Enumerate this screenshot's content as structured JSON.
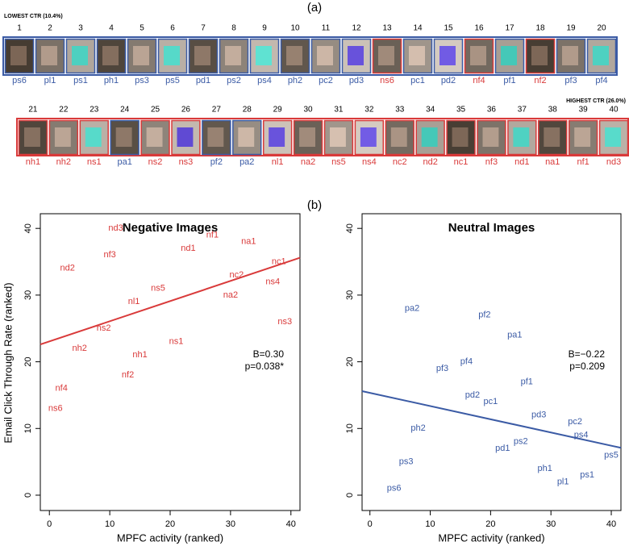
{
  "panel_a": {
    "label": "(a)",
    "lowest": "LOWEST CTR (10.4%)",
    "highest": "HIGHEST CTR (26.0%)",
    "items": [
      {
        "rank": 1,
        "code": "ps6"
      },
      {
        "rank": 2,
        "code": "pl1"
      },
      {
        "rank": 3,
        "code": "ps1"
      },
      {
        "rank": 4,
        "code": "ph1"
      },
      {
        "rank": 5,
        "code": "ps3"
      },
      {
        "rank": 6,
        "code": "ps5"
      },
      {
        "rank": 7,
        "code": "pd1"
      },
      {
        "rank": 8,
        "code": "ps2"
      },
      {
        "rank": 9,
        "code": "ps4"
      },
      {
        "rank": 10,
        "code": "ph2"
      },
      {
        "rank": 11,
        "code": "pc2"
      },
      {
        "rank": 12,
        "code": "pd3"
      },
      {
        "rank": 13,
        "code": "ns6"
      },
      {
        "rank": 14,
        "code": "pc1"
      },
      {
        "rank": 15,
        "code": "pd2"
      },
      {
        "rank": 16,
        "code": "nf4"
      },
      {
        "rank": 17,
        "code": "pf1"
      },
      {
        "rank": 18,
        "code": "nf2"
      },
      {
        "rank": 19,
        "code": "pf3"
      },
      {
        "rank": 20,
        "code": "pf4"
      },
      {
        "rank": 21,
        "code": "nh1"
      },
      {
        "rank": 22,
        "code": "nh2"
      },
      {
        "rank": 23,
        "code": "ns1"
      },
      {
        "rank": 24,
        "code": "pa1"
      },
      {
        "rank": 25,
        "code": "ns2"
      },
      {
        "rank": 26,
        "code": "ns3"
      },
      {
        "rank": 27,
        "code": "pf2"
      },
      {
        "rank": 28,
        "code": "pa2"
      },
      {
        "rank": 29,
        "code": "nl1"
      },
      {
        "rank": 30,
        "code": "na2"
      },
      {
        "rank": 31,
        "code": "ns5"
      },
      {
        "rank": 32,
        "code": "ns4"
      },
      {
        "rank": 33,
        "code": "nc2"
      },
      {
        "rank": 34,
        "code": "nd2"
      },
      {
        "rank": 35,
        "code": "nc1"
      },
      {
        "rank": 36,
        "code": "nf3"
      },
      {
        "rank": 37,
        "code": "nd1"
      },
      {
        "rank": 38,
        "code": "na1"
      },
      {
        "rank": 39,
        "code": "nf1"
      },
      {
        "rank": 40,
        "code": "nd3"
      }
    ]
  },
  "panel_b": {
    "label": "(b)",
    "y_label": "Email Click Through Rate (ranked)"
  },
  "chart_data": [
    {
      "type": "scatter",
      "title": "Negative Images",
      "x_label": "MPFC activity (ranked)",
      "color": "#d93a3a",
      "xlim": [
        -1.5,
        41.5
      ],
      "ylim": [
        -2.3,
        42.2
      ],
      "xticks": [
        0,
        10,
        20,
        30,
        40
      ],
      "yticks": [
        0,
        10,
        20,
        30,
        40
      ],
      "points": {
        "labels": [
          "ns6",
          "nf4",
          "nf2",
          "nh1",
          "nh2",
          "ns1",
          "ns2",
          "ns3",
          "nl1",
          "na2",
          "ns5",
          "ns4",
          "nc2",
          "nd2",
          "nc1",
          "nf3",
          "nd1",
          "na1",
          "nf1",
          "nd3"
        ],
        "x": [
          1,
          2,
          13,
          15,
          5,
          21,
          9,
          39,
          14,
          30,
          18,
          37,
          31,
          3,
          38,
          10,
          23,
          33,
          27,
          11
        ],
        "y": [
          13,
          16,
          18,
          21,
          22,
          23,
          25,
          26,
          29,
          30,
          31,
          32,
          33,
          34,
          35,
          36,
          37,
          38,
          39,
          40
        ]
      },
      "trend_line": {
        "x": [
          -1.5,
          41.5
        ],
        "y": [
          22.6,
          35.6
        ]
      },
      "annotations": [
        "B=0.30",
        "p=0.038*"
      ]
    },
    {
      "type": "scatter",
      "title": "Neutral Images",
      "x_label": "MPFC activity (ranked)",
      "color": "#3b5ba5",
      "xlim": [
        -1.3,
        41.6
      ],
      "ylim": [
        -2.3,
        42.2
      ],
      "xticks": [
        0,
        10,
        20,
        30,
        40
      ],
      "yticks": [
        0,
        10,
        20,
        30,
        40
      ],
      "points": {
        "labels": [
          "ps6",
          "pl1",
          "ps1",
          "ph1",
          "ps3",
          "ps5",
          "pd1",
          "ps2",
          "ps4",
          "ph2",
          "pc2",
          "pd3",
          "pc1",
          "pd2",
          "pf1",
          "pf3",
          "pf4",
          "pa1",
          "pf2",
          "pa2"
        ],
        "x": [
          4,
          32,
          36,
          29,
          6,
          40,
          22,
          25,
          35,
          8,
          34,
          28,
          20,
          17,
          26,
          12,
          16,
          24,
          19,
          7
        ],
        "y": [
          1,
          2,
          3,
          4,
          5,
          6,
          7,
          8,
          9,
          10,
          11,
          12,
          14,
          15,
          17,
          19,
          20,
          24,
          27,
          28
        ]
      },
      "trend_line": {
        "x": [
          -1.3,
          41.6
        ],
        "y": [
          15.6,
          7.1
        ]
      },
      "annotations": [
        "B=−0.22",
        "p=0.209"
      ]
    }
  ]
}
